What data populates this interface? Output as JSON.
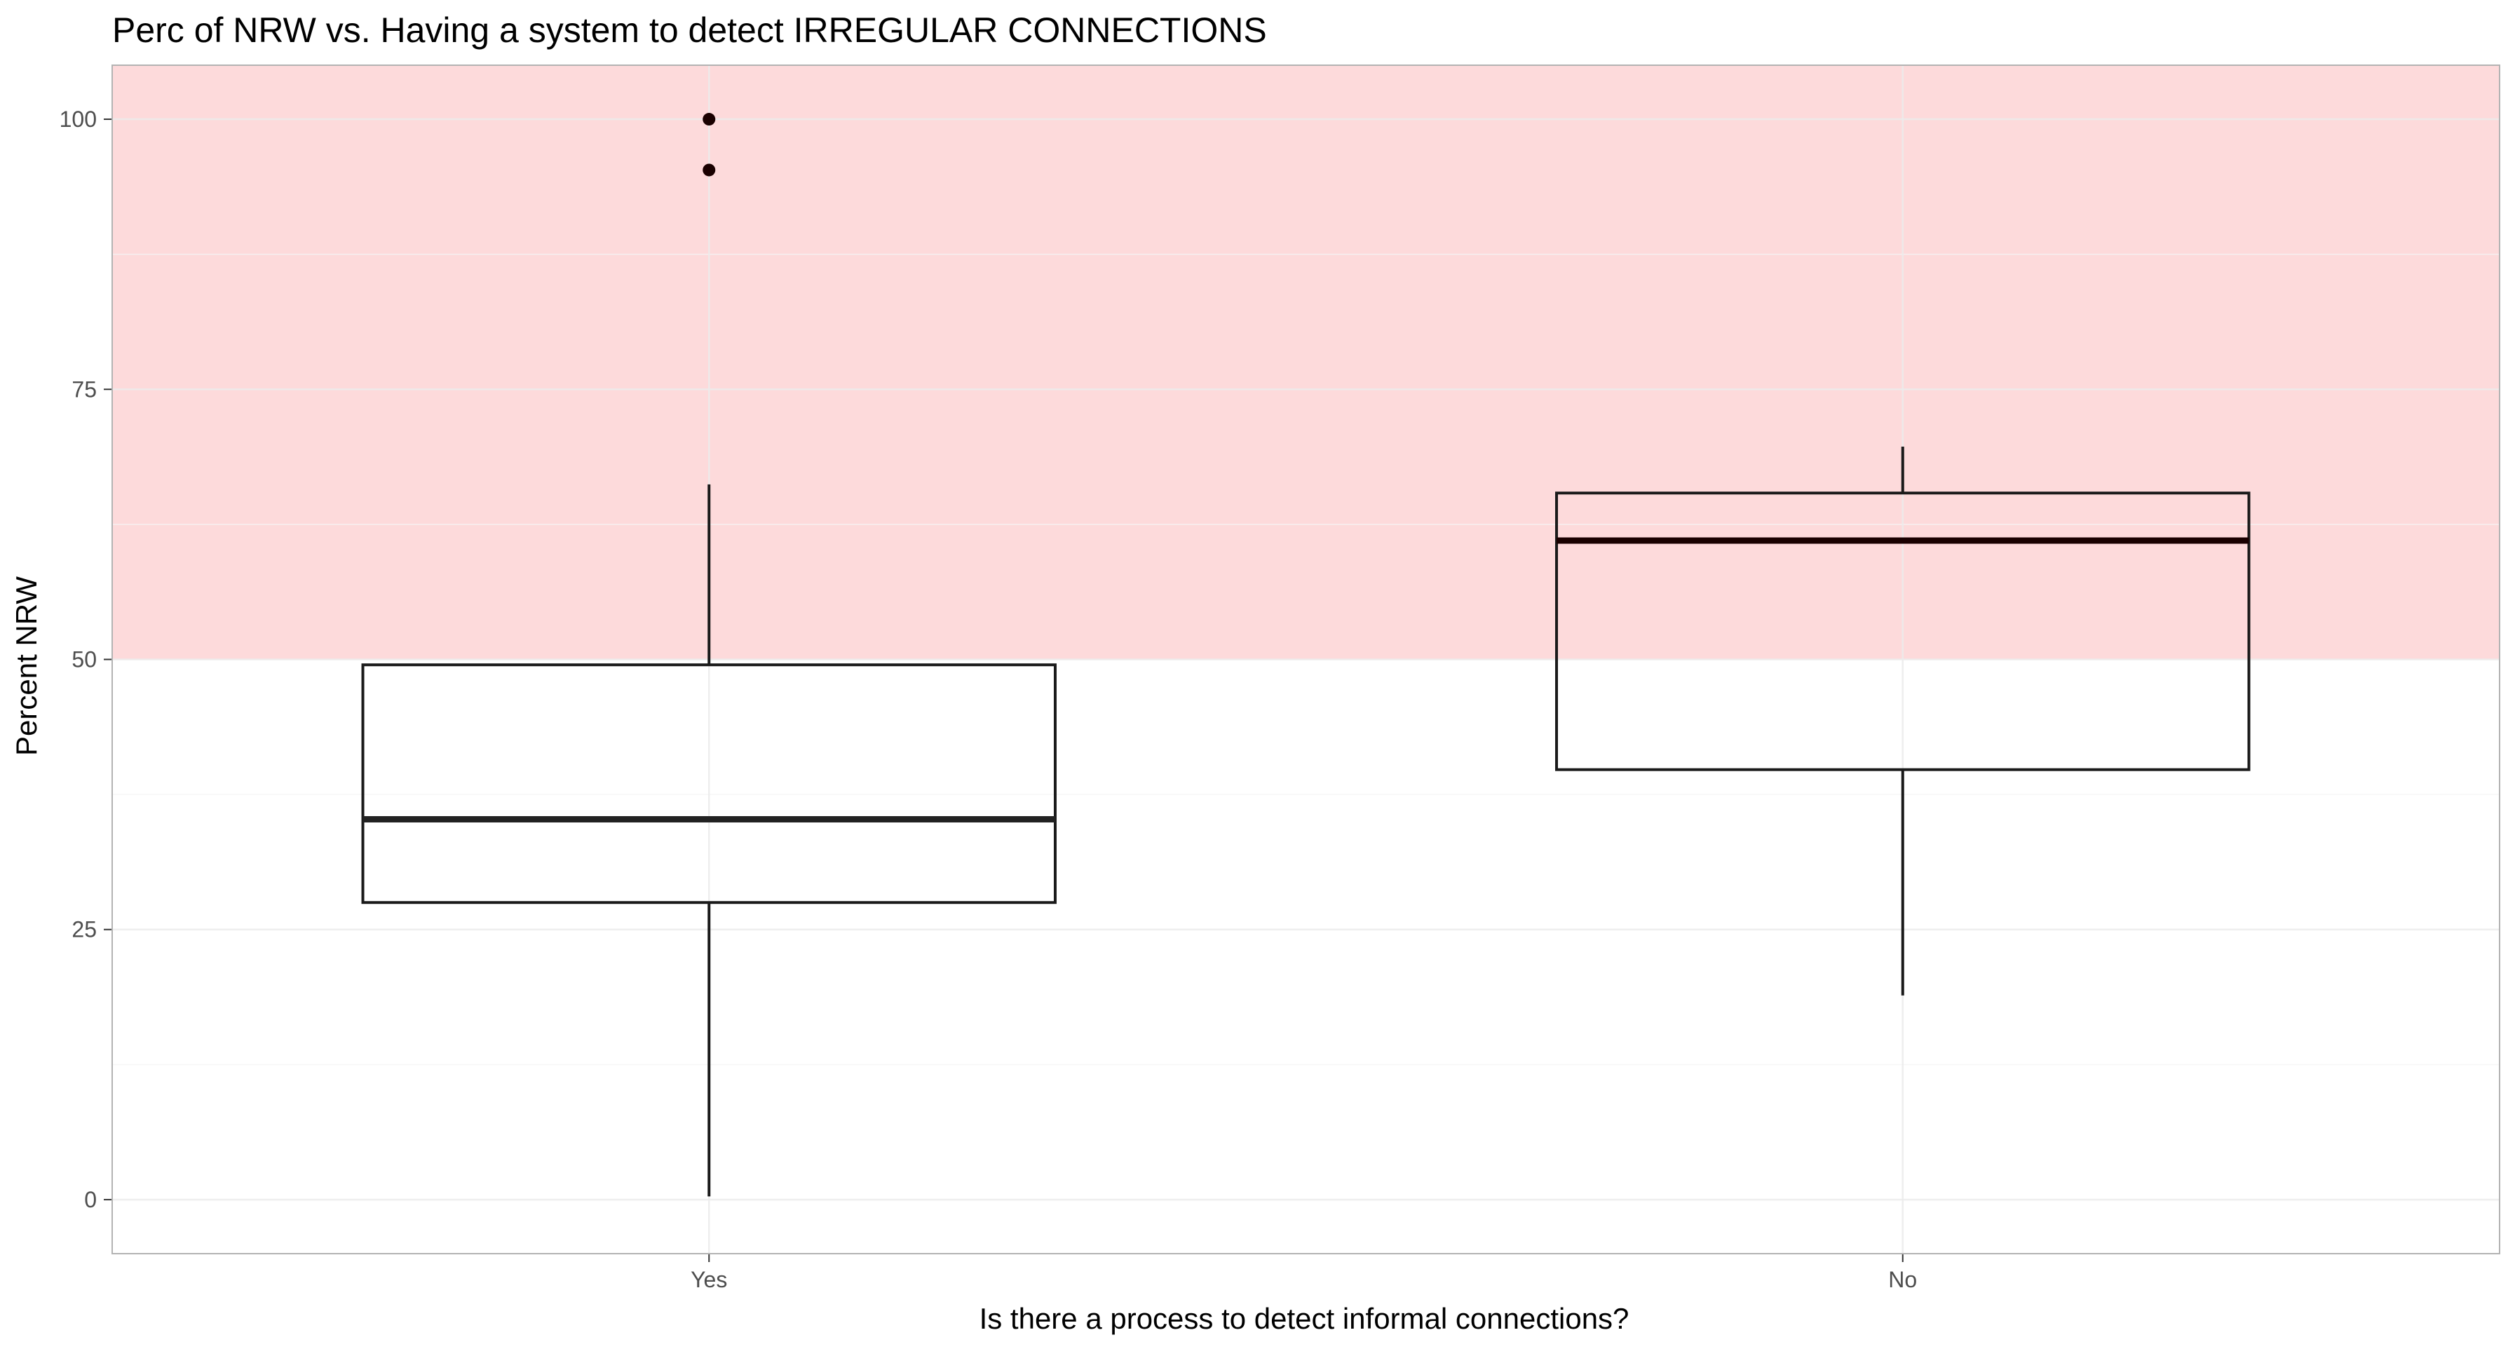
{
  "chart_data": {
    "type": "boxplot",
    "title": "Perc of NRW vs. Having a system to detect IRREGULAR CONNECTIONS",
    "xlabel": "Is there a process to detect informal connections?",
    "ylabel": "Percent NRW",
    "categories": [
      "Yes",
      "No"
    ],
    "ylim": [
      -5,
      105
    ],
    "yticks": [
      0,
      25,
      50,
      75,
      100
    ],
    "grid": true,
    "highlight_band": {
      "from": 50,
      "to": 105,
      "color": "#fddadb"
    },
    "boxes": [
      {
        "category": "Yes",
        "lower_whisker": 0.3,
        "q1": 27.5,
        "median": 35.2,
        "q3": 49.5,
        "upper_whisker": 66.2,
        "outliers": [
          95.3,
          100
        ]
      },
      {
        "category": "No",
        "lower_whisker": 18.9,
        "q1": 39.8,
        "median": 61.0,
        "q3": 65.4,
        "upper_whisker": 69.7,
        "outliers": []
      }
    ]
  },
  "colors": {
    "box_stroke": "#1a1a1a",
    "box_fill": "#ffffff",
    "grid_major": "#ebebeb",
    "grid_minor": "#f5f5f5",
    "panel_border": "#b3b3b3",
    "outlier": "#1a0000"
  }
}
